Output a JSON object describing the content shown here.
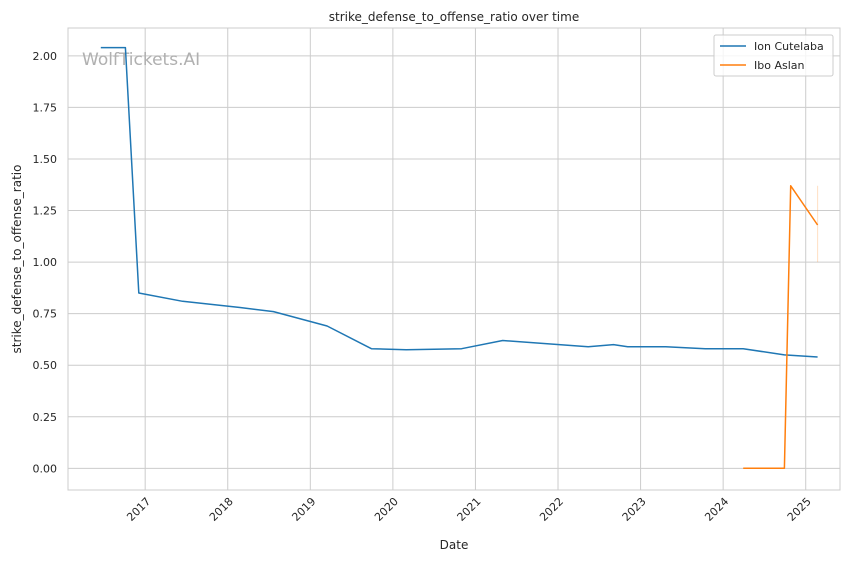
{
  "chart_data": {
    "type": "line",
    "title": "strike_defense_to_offense_ratio over time",
    "xlabel": "Date",
    "ylabel": "strike_defense_to_offense_ratio",
    "watermark": "WolfTickets.AI",
    "x_ticks": [
      "2017",
      "2018",
      "2019",
      "2020",
      "2021",
      "2022",
      "2023",
      "2024",
      "2025"
    ],
    "y_ticks": [
      "0.00",
      "0.25",
      "0.50",
      "0.75",
      "1.00",
      "1.25",
      "1.50",
      "1.75",
      "2.00"
    ],
    "xlim": [
      "2016-01-25",
      "2025-06-01"
    ],
    "ylim": [
      -0.105,
      2.135
    ],
    "grid": true,
    "legend_position": "top-right",
    "series": [
      {
        "name": "Ion Cutelaba",
        "color": "#1f77b4",
        "points": [
          [
            "2016-06-18",
            2.04
          ],
          [
            "2016-10-05",
            2.04
          ],
          [
            "2016-12-03",
            0.85
          ],
          [
            "2017-06-15",
            0.81
          ],
          [
            "2018-02-24",
            0.78
          ],
          [
            "2018-07-22",
            0.76
          ],
          [
            "2019-03-16",
            0.69
          ],
          [
            "2019-09-28",
            0.58
          ],
          [
            "2020-02-29",
            0.575
          ],
          [
            "2020-10-31",
            0.58
          ],
          [
            "2021-05-01",
            0.62
          ],
          [
            "2022-05-14",
            0.59
          ],
          [
            "2022-09-03",
            0.6
          ],
          [
            "2022-11-05",
            0.59
          ],
          [
            "2023-04-22",
            0.59
          ],
          [
            "2023-10-14",
            0.58
          ],
          [
            "2024-03-30",
            0.58
          ],
          [
            "2024-09-28",
            0.55
          ],
          [
            "2025-02-22",
            0.54
          ]
        ]
      },
      {
        "name": "Ibo Aslan",
        "color": "#ff7f0e",
        "points": [
          [
            "2024-03-30",
            0.0
          ],
          [
            "2024-09-28",
            0.0
          ],
          [
            "2024-10-26",
            1.37
          ],
          [
            "2025-02-22",
            1.18
          ]
        ],
        "band": {
          "date": "2025-02-22",
          "low": 1.0,
          "high": 1.37
        }
      }
    ]
  }
}
